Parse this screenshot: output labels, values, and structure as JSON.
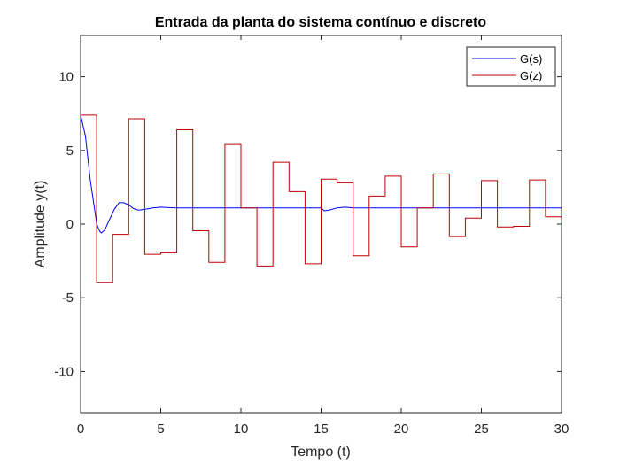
{
  "chart_data": {
    "type": "line",
    "title": "Entrada da planta do sistema contínuo e discreto",
    "xlabel": "Tempo (t)",
    "ylabel": "Amplitude y(t)",
    "xlim": [
      0,
      30
    ],
    "ylim": [
      -12.8,
      12.8
    ],
    "xticks": [
      0,
      5,
      10,
      15,
      20,
      25,
      30
    ],
    "xtick_labels": [
      "0",
      "5",
      "10",
      "15",
      "20",
      "25",
      "30"
    ],
    "yticks": [
      -10,
      -5,
      0,
      5,
      10
    ],
    "ytick_labels": [
      "-10",
      "-5",
      "0",
      "5",
      "10"
    ],
    "grid": false,
    "legend_position": "top-right",
    "series": [
      {
        "name": "G(s)",
        "color": "#0000ff",
        "style": "continuous",
        "x": [
          0,
          0.3,
          0.6,
          0.9,
          1.0,
          1.2,
          1.3,
          1.5,
          1.8,
          2.1,
          2.4,
          2.7,
          3.0,
          3.3,
          3.6,
          4.0,
          4.5,
          5.0,
          5.5,
          6.0,
          7.0,
          8.0,
          10.0,
          12.0,
          14.0,
          15.0,
          15.2,
          15.5,
          16.0,
          16.5,
          17.0,
          20.0,
          25.0,
          30.0
        ],
        "y": [
          7.4,
          6.0,
          3.0,
          0.8,
          0.0,
          -0.5,
          -0.6,
          -0.4,
          0.3,
          1.0,
          1.45,
          1.45,
          1.3,
          1.05,
          0.95,
          1.0,
          1.1,
          1.15,
          1.12,
          1.1,
          1.1,
          1.1,
          1.1,
          1.1,
          1.1,
          1.1,
          0.9,
          0.95,
          1.1,
          1.15,
          1.1,
          1.1,
          1.1,
          1.1
        ]
      },
      {
        "name": "G(z)",
        "color": "#c00000",
        "style": "stairs",
        "x": [
          0,
          1,
          2,
          3,
          4,
          5,
          6,
          7,
          8,
          9,
          10,
          11,
          12,
          13,
          14,
          15,
          16,
          17,
          18,
          19,
          20,
          21,
          22,
          23,
          24,
          25,
          26,
          27,
          28,
          29,
          30
        ],
        "y": [
          7.4,
          -3.95,
          -0.7,
          7.15,
          -2.05,
          -1.95,
          6.4,
          -0.45,
          -2.6,
          5.4,
          1.1,
          -2.85,
          4.2,
          2.2,
          -2.7,
          3.05,
          2.8,
          -2.15,
          1.9,
          3.25,
          -1.55,
          1.1,
          3.4,
          -0.85,
          0.4,
          2.95,
          -0.2,
          -0.15,
          3.0,
          0.5,
          -0.35
        ]
      }
    ]
  }
}
